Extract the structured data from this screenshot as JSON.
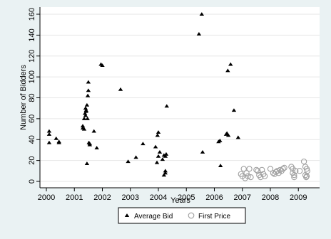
{
  "chart_data": {
    "type": "scatter",
    "title": "",
    "xlabel": "Years",
    "ylabel": "Number of Bidders",
    "xlim": [
      2000,
      2009.3
    ],
    "ylim": [
      -5,
      165
    ],
    "x_ticks": [
      2000,
      2001,
      2002,
      2003,
      2004,
      2005,
      2006,
      2007,
      2008,
      2009
    ],
    "x_tick_labels": [
      "2000",
      "2001",
      "2002",
      "2003",
      "2004",
      "2005",
      "2006",
      "2007",
      "2008",
      "2009"
    ],
    "y_ticks": [
      0,
      20,
      40,
      60,
      80,
      100,
      120,
      140,
      160
    ],
    "y_tick_labels": [
      "0",
      "20",
      "40",
      "60",
      "80",
      "100",
      "120",
      "140",
      "160"
    ],
    "grid": "horizontal",
    "legend_position": "bottom",
    "colors": {
      "outer_background": "#eaf2f3",
      "plot_background": "#ffffff",
      "average_bid_marker": "#000000",
      "first_price_marker": "#a0a0a0"
    },
    "series": [
      {
        "name": "Average Bid",
        "marker": "triangle",
        "x": [
          2000.1,
          2000.1,
          2000.1,
          2000.35,
          2000.45,
          2000.45,
          2001.3,
          2001.3,
          2001.35,
          2001.35,
          2001.38,
          2001.4,
          2001.4,
          2001.42,
          2001.42,
          2001.45,
          2001.45,
          2001.47,
          2001.48,
          2001.5,
          2001.5,
          2001.52,
          2001.55,
          2001.55,
          2001.7,
          2001.8,
          2001.95,
          2002.0,
          2002.65,
          2002.92,
          2003.2,
          2003.45,
          2003.9,
          2003.95,
          2003.97,
          2004.0,
          2004.0,
          2004.05,
          2004.15,
          2004.2,
          2004.2,
          2004.25,
          2004.25,
          2004.25,
          2004.28,
          2004.3,
          2005.45,
          2005.55,
          2005.58,
          2006.15,
          2006.2,
          2006.22,
          2006.42,
          2006.45,
          2006.48,
          2006.5,
          2006.58,
          2006.7,
          2006.85
        ],
        "y": [
          48,
          45,
          37,
          41,
          38,
          37,
          53,
          51,
          50,
          60,
          65,
          63,
          70,
          67,
          68,
          73,
          17,
          60,
          82,
          87,
          95,
          37,
          35,
          36,
          48,
          32,
          112,
          111,
          88,
          19,
          23,
          36,
          33,
          18,
          44,
          47,
          24,
          28,
          21,
          25,
          6,
          8,
          10,
          24,
          26,
          72,
          141,
          160,
          28,
          38,
          39,
          15,
          45,
          46,
          106,
          44,
          112,
          68,
          42
        ]
      },
      {
        "name": "First Price",
        "marker": "circle-open",
        "x": [
          2006.95,
          2007.0,
          2007.05,
          2007.1,
          2007.15,
          2007.2,
          2007.25,
          2007.3,
          2007.5,
          2007.55,
          2007.6,
          2007.65,
          2007.7,
          2007.75,
          2007.8,
          2008.0,
          2008.1,
          2008.15,
          2008.2,
          2008.25,
          2008.3,
          2008.35,
          2008.4,
          2008.45,
          2008.5,
          2008.75,
          2008.8,
          2008.8,
          2008.85,
          2008.85,
          2008.9,
          2009.05,
          2009.2,
          2009.25,
          2009.25,
          2009.28,
          2009.3,
          2009.3,
          2009.32
        ],
        "y": [
          7,
          5,
          12,
          3,
          8,
          5,
          12,
          4,
          11,
          10,
          6,
          4,
          11,
          7,
          5,
          12,
          8,
          7,
          9,
          10,
          8,
          11,
          10,
          12,
          13,
          14,
          12,
          8,
          6,
          4,
          10,
          10,
          19,
          14,
          6,
          4,
          5,
          12,
          10
        ]
      }
    ]
  }
}
